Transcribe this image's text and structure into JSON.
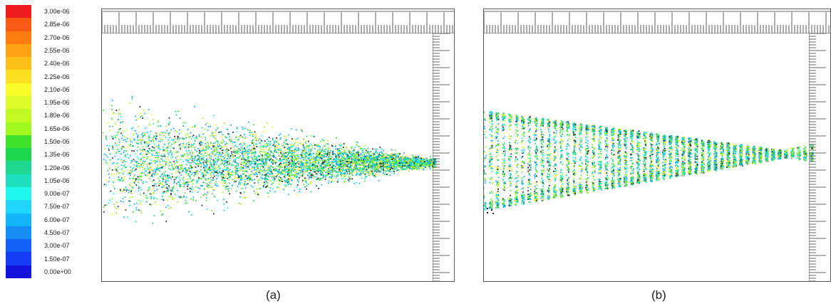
{
  "colorbar": {
    "labels": [
      "3.00e-06",
      "2.85e-06",
      "2.70e-06",
      "2.55e-06",
      "2.40e-06",
      "2.25e-06",
      "2.10e-06",
      "1.95e-06",
      "1.80e-06",
      "1.65e-06",
      "1.50e-06",
      "1.35e-06",
      "1.20e-06",
      "1.05e-06",
      "9.00e-07",
      "7.50e-07",
      "6.00e-07",
      "4.50e-07",
      "3.00e-07",
      "1.50e-07",
      "0.00e+00"
    ],
    "colors": [
      "#ee1c1c",
      "#fb5a14",
      "#fb7d12",
      "#fda312",
      "#fcc016",
      "#fde021",
      "#fafc2a",
      "#defc2b",
      "#c0fa22",
      "#a2f821",
      "#40e02c",
      "#1cd84f",
      "#1fd88f",
      "#1ee0bf",
      "#22f7ef",
      "#1ed7fa",
      "#14b6fb",
      "#168ff4",
      "#1560f4",
      "#153cf7",
      "#1313dd"
    ]
  },
  "panels": [
    {
      "id": "a",
      "caption": "(a)"
    },
    {
      "id": "b",
      "caption": "(b)"
    }
  ],
  "particle_colors": [
    "#18d8a8",
    "#1ec0c8",
    "#40e02c",
    "#a2f821",
    "#fafc2a",
    "#1ea0d8",
    "#2a2a2a",
    "#22f7ef",
    "#7fe43a",
    "#14b6fb"
  ]
}
